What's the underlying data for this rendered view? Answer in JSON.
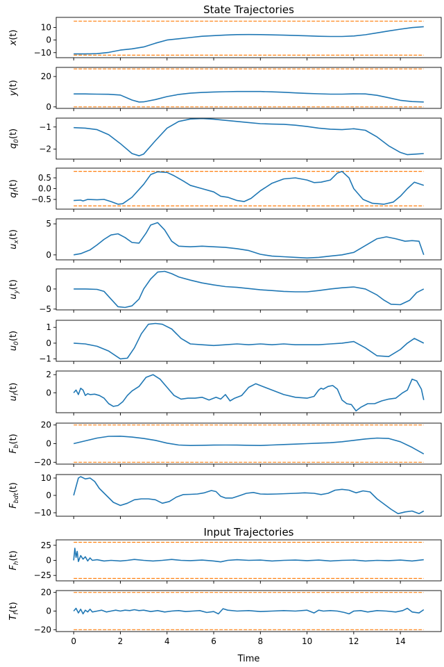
{
  "colors": {
    "series": "#1f77b4",
    "bounds": "#ff7f0e",
    "frame": "#000000"
  },
  "chart_data": [
    {
      "type": "line",
      "title": "State Trajectories",
      "ylabel_main": "x",
      "ylabel_sub": "",
      "ylim": [
        -14,
        18
      ],
      "yticks": [
        {
          "v": 10,
          "t": "10"
        },
        {
          "v": 0,
          "t": "0"
        },
        {
          "v": -10,
          "t": "−10"
        }
      ],
      "bounds": [
        15,
        -12
      ],
      "x": [
        0,
        0.5,
        1,
        1.5,
        2,
        2.5,
        3,
        3.5,
        4,
        4.5,
        5,
        5.5,
        6,
        6.5,
        7,
        7.5,
        8,
        8.5,
        9,
        9.5,
        10,
        10.5,
        11,
        11.5,
        12,
        12.5,
        13,
        13.5,
        14,
        14.5,
        15
      ],
      "y": [
        -11,
        -11,
        -10.8,
        -9.8,
        -8,
        -7,
        -5.5,
        -2.5,
        0,
        1,
        2,
        3,
        3.5,
        4,
        4.3,
        4.4,
        4.3,
        4.1,
        3.9,
        3.6,
        3.3,
        3,
        2.8,
        2.8,
        3.2,
        4.2,
        5.7,
        7.2,
        8.6,
        9.9,
        10.6
      ]
    },
    {
      "type": "line",
      "title": "",
      "ylabel_main": "y",
      "ylabel_sub": "",
      "ylim": [
        -1,
        26
      ],
      "yticks": [
        {
          "v": 20,
          "t": "20"
        },
        {
          "v": 0,
          "t": "0"
        }
      ],
      "bounds": [
        25,
        0
      ],
      "x": [
        0,
        0.5,
        1,
        1.5,
        2,
        2.5,
        2.8,
        3,
        3.5,
        4,
        4.5,
        5,
        5.5,
        6,
        6.5,
        7,
        7.5,
        8,
        8.5,
        9,
        9.5,
        10,
        10.5,
        11,
        11.5,
        12,
        12.5,
        13,
        13.5,
        14,
        14.5,
        15
      ],
      "y": [
        8.5,
        8.5,
        8.4,
        8.3,
        7.8,
        4.5,
        3.2,
        3.3,
        4.8,
        6.8,
        8.2,
        9,
        9.5,
        9.8,
        10,
        10.1,
        10.1,
        10.1,
        9.9,
        9.6,
        9.2,
        8.9,
        8.6,
        8.4,
        8.4,
        8.6,
        8.5,
        7.6,
        6,
        4.3,
        3.5,
        3.2
      ]
    },
    {
      "type": "line",
      "title": "",
      "ylabel_main": "q",
      "ylabel_sub": "0",
      "ylim": [
        -2.45,
        -0.6
      ],
      "yticks": [
        {
          "v": -1,
          "t": "−1"
        },
        {
          "v": -2,
          "t": "−2"
        }
      ],
      "x": [
        0,
        0.5,
        1,
        1.5,
        2,
        2.5,
        2.8,
        3,
        3.5,
        4,
        4.5,
        5,
        5.5,
        6,
        6.5,
        7,
        7.5,
        8,
        8.5,
        9,
        9.5,
        10,
        10.5,
        11,
        11.5,
        12,
        12.5,
        13,
        13.5,
        14,
        14.3,
        14.7,
        15
      ],
      "y": [
        -1.03,
        -1.05,
        -1.12,
        -1.35,
        -1.75,
        -2.2,
        -2.3,
        -2.22,
        -1.62,
        -1.05,
        -0.75,
        -0.64,
        -0.62,
        -0.65,
        -0.7,
        -0.75,
        -0.8,
        -0.85,
        -0.87,
        -0.88,
        -0.92,
        -0.98,
        -1.05,
        -1.1,
        -1.12,
        -1.08,
        -1.15,
        -1.45,
        -1.85,
        -2.15,
        -2.25,
        -2.22,
        -2.2
      ]
    },
    {
      "type": "line",
      "title": "",
      "ylabel_main": "q",
      "ylabel_sub": "f",
      "ylim": [
        -0.95,
        0.95
      ],
      "yticks": [
        {
          "v": 0.5,
          "t": "0.5"
        },
        {
          "v": 0,
          "t": "0.0"
        },
        {
          "v": -0.5,
          "t": "−0.5"
        }
      ],
      "bounds": [
        0.8,
        -0.8
      ],
      "x": [
        0,
        0.3,
        0.4,
        0.6,
        1,
        1.3,
        1.6,
        1.9,
        2.1,
        2.5,
        3,
        3.3,
        3.6,
        4,
        4.3,
        4.7,
        5,
        5.5,
        6,
        6.3,
        6.6,
        7,
        7.3,
        7.6,
        8,
        8.5,
        9,
        9.5,
        10,
        10.3,
        10.6,
        11,
        11.3,
        11.5,
        11.8,
        12,
        12.4,
        12.8,
        13.3,
        13.7,
        14,
        14.3,
        14.6,
        15
      ],
      "y": [
        -0.55,
        -0.53,
        -0.57,
        -0.5,
        -0.52,
        -0.5,
        -0.6,
        -0.72,
        -0.7,
        -0.4,
        0.2,
        0.65,
        0.78,
        0.75,
        0.6,
        0.35,
        0.15,
        0,
        -0.15,
        -0.35,
        -0.4,
        -0.55,
        -0.6,
        -0.45,
        -0.1,
        0.25,
        0.45,
        0.5,
        0.4,
        0.28,
        0.3,
        0.4,
        0.72,
        0.8,
        0.5,
        0,
        -0.5,
        -0.68,
        -0.72,
        -0.62,
        -0.35,
        0,
        0.3,
        0.15
      ]
    },
    {
      "type": "line",
      "title": "",
      "ylabel_main": "u",
      "ylabel_sub": "x",
      "ylim": [
        -0.8,
        5.8
      ],
      "yticks": [
        {
          "v": 5,
          "t": "5"
        },
        {
          "v": 0,
          "t": "0"
        }
      ],
      "x": [
        0,
        0.3,
        0.7,
        1,
        1.3,
        1.6,
        1.9,
        2.2,
        2.5,
        2.8,
        3.1,
        3.3,
        3.6,
        3.9,
        4.2,
        4.5,
        5,
        5.5,
        6,
        6.5,
        7,
        7.5,
        8,
        8.5,
        9,
        9.5,
        10,
        10.5,
        11,
        11.5,
        12,
        12.5,
        13,
        13.4,
        13.8,
        14.2,
        14.5,
        14.8,
        15
      ],
      "y": [
        0,
        0.2,
        0.8,
        1.6,
        2.5,
        3.2,
        3.4,
        2.8,
        2,
        1.9,
        3.5,
        4.8,
        5.2,
        4,
        2.2,
        1.4,
        1.3,
        1.4,
        1.3,
        1.2,
        1,
        0.7,
        0.1,
        -0.2,
        -0.3,
        -0.4,
        -0.5,
        -0.4,
        -0.2,
        0,
        0.4,
        1.5,
        2.6,
        2.9,
        2.6,
        2.2,
        2.3,
        2.2,
        0
      ]
    },
    {
      "type": "line",
      "title": "",
      "ylabel_main": "u",
      "ylabel_sub": "y",
      "ylim": [
        -5.2,
        5.0
      ],
      "yticks": [
        {
          "v": 0,
          "t": "0"
        },
        {
          "v": -5,
          "t": "−5"
        }
      ],
      "x": [
        0,
        0.5,
        1,
        1.3,
        1.6,
        1.9,
        2.2,
        2.5,
        2.8,
        3,
        3.3,
        3.6,
        3.9,
        4.2,
        4.5,
        5,
        5.5,
        6,
        6.5,
        7,
        7.5,
        8,
        8.5,
        9,
        9.5,
        10,
        10.5,
        11,
        11.5,
        12,
        12.5,
        13,
        13.3,
        13.6,
        14,
        14.4,
        14.7,
        15
      ],
      "y": [
        0,
        0,
        -0.1,
        -0.6,
        -2.5,
        -4.4,
        -4.6,
        -4.2,
        -2.5,
        0,
        2.5,
        4.2,
        4.4,
        3.8,
        3,
        2.2,
        1.5,
        1,
        0.6,
        0.4,
        0.1,
        -0.2,
        -0.4,
        -0.6,
        -0.7,
        -0.7,
        -0.4,
        0,
        0.3,
        0.5,
        0,
        -1.5,
        -2.8,
        -3.8,
        -3.9,
        -2.8,
        -0.9,
        0
      ]
    },
    {
      "type": "line",
      "title": "",
      "ylabel_main": "u",
      "ylabel_sub": "0",
      "ylim": [
        -1.15,
        1.45
      ],
      "yticks": [
        {
          "v": 1,
          "t": "1"
        },
        {
          "v": 0,
          "t": "0"
        },
        {
          "v": -1,
          "t": "−1"
        }
      ],
      "x": [
        0,
        0.5,
        1,
        1.5,
        2,
        2.3,
        2.6,
        2.9,
        3.2,
        3.5,
        3.8,
        4.2,
        4.6,
        5,
        5.5,
        6,
        6.5,
        7,
        7.5,
        8,
        8.5,
        9,
        9.5,
        10,
        10.5,
        11,
        11.5,
        12,
        12.5,
        13,
        13.5,
        14,
        14.3,
        14.6,
        15
      ],
      "y": [
        0,
        -0.05,
        -0.2,
        -0.5,
        -1,
        -0.95,
        -0.3,
        0.6,
        1.2,
        1.25,
        1.2,
        0.9,
        0.3,
        -0.05,
        -0.1,
        -0.15,
        -0.1,
        -0.05,
        -0.1,
        -0.05,
        -0.1,
        -0.05,
        -0.1,
        -0.1,
        -0.1,
        -0.05,
        0,
        0.1,
        -0.3,
        -0.8,
        -0.85,
        -0.4,
        0,
        0.3,
        0
      ]
    },
    {
      "type": "line",
      "title": "",
      "ylabel_main": "u",
      "ylabel_sub": "f",
      "ylim": [
        -2.2,
        2.4
      ],
      "yticks": [
        {
          "v": 2,
          "t": "2"
        },
        {
          "v": 0,
          "t": "0"
        }
      ],
      "x": [
        0,
        0.1,
        0.2,
        0.3,
        0.4,
        0.5,
        0.6,
        0.7,
        0.9,
        1.1,
        1.3,
        1.5,
        1.7,
        1.9,
        2.1,
        2.3,
        2.5,
        2.8,
        3.1,
        3.4,
        3.7,
        4,
        4.3,
        4.6,
        4.9,
        5.2,
        5.5,
        5.8,
        6.1,
        6.3,
        6.5,
        6.7,
        6.9,
        7.2,
        7.5,
        7.8,
        8.1,
        8.5,
        9,
        9.5,
        10,
        10.3,
        10.5,
        10.6,
        10.7,
        10.9,
        11.1,
        11.3,
        11.5,
        11.7,
        11.9,
        12.1,
        12.3,
        12.6,
        12.9,
        13.2,
        13.5,
        13.8,
        14.1,
        14.3,
        14.5,
        14.7,
        14.9,
        15
      ],
      "y": [
        0,
        0.3,
        -0.2,
        0.5,
        0.3,
        -0.3,
        -0.1,
        -0.2,
        -0.15,
        -0.3,
        -0.6,
        -1.2,
        -1.5,
        -1.4,
        -1,
        -0.3,
        0.2,
        0.7,
        1.7,
        2,
        1.5,
        0.6,
        -0.3,
        -0.7,
        -0.6,
        -0.6,
        -0.5,
        -0.8,
        -0.5,
        -0.7,
        -0.2,
        -0.9,
        -0.6,
        -0.3,
        0.6,
        1,
        0.7,
        0.3,
        -0.2,
        -0.5,
        -0.6,
        -0.4,
        0.3,
        0.5,
        0.4,
        0.7,
        0.8,
        0.4,
        -0.8,
        -1.2,
        -1.3,
        -2.0,
        -1.6,
        -1.2,
        -1.2,
        -0.9,
        -0.7,
        -0.6,
        0,
        0.3,
        1.5,
        1.3,
        0.4,
        -0.8
      ]
    },
    {
      "type": "line",
      "title": "",
      "ylabel_main": "F",
      "ylabel_sub": "b",
      "ylim": [
        -22,
        22
      ],
      "yticks": [
        {
          "v": 20,
          "t": "20"
        },
        {
          "v": 0,
          "t": "0"
        },
        {
          "v": -20,
          "t": "−20"
        }
      ],
      "bounds": [
        20,
        -20
      ],
      "x": [
        0,
        0.5,
        1,
        1.5,
        2,
        2.5,
        3,
        3.5,
        4,
        4.5,
        5,
        5.5,
        6,
        6.5,
        7,
        7.5,
        8,
        8.5,
        9,
        9.5,
        10,
        10.5,
        11,
        11.5,
        12,
        12.5,
        13,
        13.5,
        14,
        14.5,
        15
      ],
      "y": [
        0,
        3,
        6,
        7.8,
        8,
        7,
        5.5,
        3.5,
        0.5,
        -1.5,
        -2,
        -1.8,
        -1.6,
        -1.5,
        -1.6,
        -1.8,
        -2,
        -1.5,
        -1,
        -0.5,
        0,
        0.5,
        1,
        2,
        3.5,
        5,
        6,
        5.5,
        2,
        -4,
        -11
      ]
    },
    {
      "type": "line",
      "title": "",
      "ylabel_main": "F",
      "ylabel_sub": "bdt",
      "ylim": [
        -12,
        12
      ],
      "yticks": [
        {
          "v": 10,
          "t": "10"
        },
        {
          "v": 0,
          "t": "0"
        },
        {
          "v": -10,
          "t": "−10"
        }
      ],
      "x": [
        0,
        0.1,
        0.2,
        0.3,
        0.5,
        0.7,
        0.9,
        1.1,
        1.4,
        1.7,
        2,
        2.3,
        2.6,
        2.9,
        3.2,
        3.5,
        3.8,
        4.1,
        4.4,
        4.7,
        5,
        5.3,
        5.6,
        5.9,
        6.1,
        6.3,
        6.5,
        6.8,
        7.1,
        7.4,
        7.7,
        8,
        8.3,
        8.7,
        9.1,
        9.5,
        9.9,
        10.3,
        10.6,
        10.9,
        11.2,
        11.5,
        11.8,
        12.1,
        12.4,
        12.7,
        13,
        13.3,
        13.6,
        13.9,
        14.2,
        14.5,
        14.8,
        15
      ],
      "y": [
        0,
        5,
        10,
        10.8,
        9.5,
        10,
        8,
        4,
        0,
        -4,
        -5.8,
        -4.5,
        -2.5,
        -2,
        -2,
        -2.5,
        -4.5,
        -3.5,
        -1,
        0.5,
        0.6,
        0.8,
        1.5,
        2.8,
        2.2,
        -0.5,
        -1.5,
        -1.5,
        -0.2,
        1.2,
        1.7,
        0.8,
        0.7,
        0.8,
        1,
        1.2,
        1.5,
        1.2,
        0.5,
        1.2,
        3,
        3.5,
        3,
        1.5,
        2.6,
        2,
        -2,
        -5,
        -8,
        -10.5,
        -9.5,
        -9,
        -10.5,
        -9
      ]
    },
    {
      "type": "line",
      "title": "Input Trajectories",
      "ylabel_main": "F",
      "ylabel_sub": "h",
      "ylim": [
        -34,
        34
      ],
      "yticks": [
        {
          "v": 25,
          "t": "25"
        },
        {
          "v": 0,
          "t": "0"
        },
        {
          "v": -25,
          "t": "−25"
        }
      ],
      "bounds": [
        30,
        -30
      ],
      "x": [
        0,
        0.05,
        0.1,
        0.15,
        0.2,
        0.3,
        0.4,
        0.5,
        0.6,
        0.7,
        0.8,
        1,
        1.3,
        1.6,
        2,
        2.3,
        2.6,
        3,
        3.4,
        3.8,
        4.2,
        4.6,
        5,
        5.5,
        6,
        6.3,
        6.6,
        7,
        7.5,
        8,
        8.5,
        9,
        9.5,
        10,
        10.5,
        11,
        11.5,
        12,
        12.5,
        13,
        13.5,
        14,
        14.5,
        15
      ],
      "y": [
        0,
        20,
        5,
        15,
        -2,
        8,
        2,
        6,
        -1,
        4,
        0,
        1,
        -1,
        0,
        -1,
        0,
        1.5,
        0,
        -1,
        0,
        1.5,
        0,
        -0.5,
        0.5,
        -1,
        -2.5,
        0,
        1,
        0,
        0.5,
        -1,
        0,
        0.5,
        -0.5,
        0.5,
        -1,
        0,
        0.5,
        -1,
        0,
        -0.5,
        0.5,
        -1,
        1
      ]
    },
    {
      "type": "line",
      "title": "",
      "ylabel_main": "T",
      "ylabel_sub": "f",
      "ylim": [
        -22,
        22
      ],
      "yticks": [
        {
          "v": 20,
          "t": "20"
        },
        {
          "v": 0,
          "t": "0"
        },
        {
          "v": -20,
          "t": "−20"
        }
      ],
      "bounds": [
        20,
        -20
      ],
      "x": [
        0,
        0.1,
        0.2,
        0.3,
        0.4,
        0.5,
        0.6,
        0.7,
        0.8,
        1,
        1.2,
        1.4,
        1.6,
        1.8,
        2,
        2.2,
        2.4,
        2.6,
        2.8,
        3,
        3.3,
        3.6,
        3.9,
        4.2,
        4.5,
        4.8,
        5.1,
        5.4,
        5.7,
        6,
        6.2,
        6.4,
        6.6,
        7,
        7.5,
        8,
        8.5,
        9,
        9.5,
        10,
        10.3,
        10.5,
        10.7,
        11,
        11.3,
        11.6,
        11.8,
        12,
        12.3,
        12.6,
        13,
        13.4,
        13.8,
        14.1,
        14.3,
        14.5,
        14.8,
        15
      ],
      "y": [
        0,
        3,
        -2,
        2,
        -3,
        1,
        -1,
        2,
        -1,
        0,
        1,
        -1,
        0,
        1,
        0,
        1,
        0.5,
        1.5,
        0.5,
        1,
        -0.5,
        0.5,
        -1,
        0,
        0.5,
        -0.5,
        0,
        0.5,
        -1.5,
        -0.5,
        -3,
        2.5,
        1,
        0,
        0.5,
        -0.5,
        0,
        0.5,
        0,
        1,
        -2,
        1,
        0,
        0.5,
        0,
        -1.5,
        -3,
        0,
        0.5,
        -1,
        0.5,
        0,
        -1,
        0.5,
        3,
        -1,
        -2,
        1.5
      ]
    }
  ],
  "xaxis": {
    "label": "Time",
    "xlim": [
      -0.75,
      15.75
    ],
    "ticks": [
      {
        "v": 0,
        "t": "0"
      },
      {
        "v": 2,
        "t": "2"
      },
      {
        "v": 4,
        "t": "4"
      },
      {
        "v": 6,
        "t": "6"
      },
      {
        "v": 8,
        "t": "8"
      },
      {
        "v": 10,
        "t": "10"
      },
      {
        "v": 12,
        "t": "12"
      },
      {
        "v": 14,
        "t": "14"
      }
    ]
  }
}
